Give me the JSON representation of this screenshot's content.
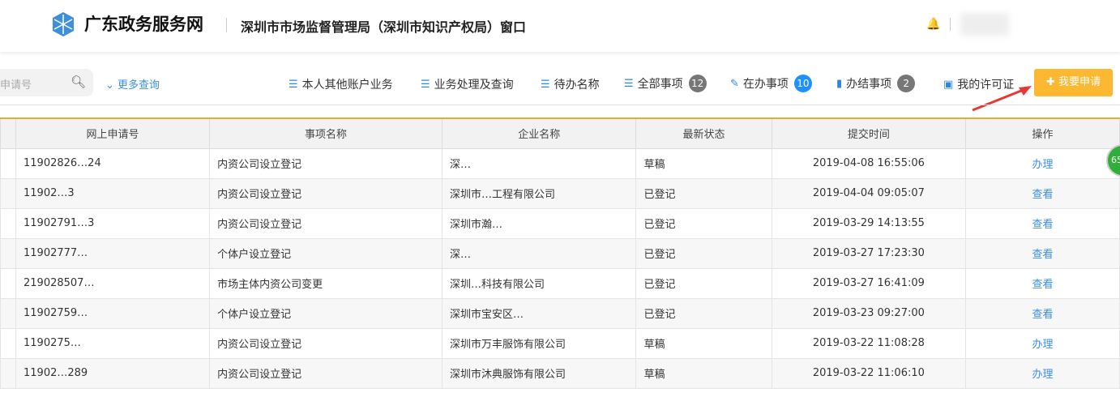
{
  "header": {
    "brand": "广东政务服务网",
    "department": "深圳市市场监督管理局（深圳市知识产权局）窗口"
  },
  "toolbar": {
    "search_placeholder": "申请号",
    "more_query": "更多查询",
    "nav": [
      {
        "label": "本人其他账户业务",
        "icon": "list-icon"
      },
      {
        "label": "业务处理及查询",
        "icon": "list-icon"
      },
      {
        "label": "待办名称",
        "icon": "list-icon"
      },
      {
        "label": "全部事项",
        "icon": "list-icon",
        "badge": "12"
      },
      {
        "label": "在办事项",
        "icon": "edit-icon",
        "badge": "10"
      },
      {
        "label": "办结事项",
        "icon": "briefcase-icon",
        "badge": "2"
      },
      {
        "label": "我的许可证",
        "icon": "id-card-icon"
      }
    ],
    "apply_label": "我要申请"
  },
  "table": {
    "columns": [
      "网上申请号",
      "事项名称",
      "企业名称",
      "最新状态",
      "提交时间",
      "操作"
    ],
    "rows": [
      [
        "11902826…24",
        "内资公司设立登记",
        "深…",
        "草稿",
        "2019-04-08 16:55:06",
        "办理"
      ],
      [
        "11902…3",
        "内资公司设立登记",
        "深圳市…工程有限公司",
        "已登记",
        "2019-04-04 09:05:07",
        "查看"
      ],
      [
        "11902791…3",
        "内资公司设立登记",
        "深圳市瀚…",
        "已登记",
        "2019-03-29 14:13:55",
        "查看"
      ],
      [
        "11902777…",
        "个体户设立登记",
        "深…",
        "已登记",
        "2019-03-27 17:23:30",
        "查看"
      ],
      [
        "219028507…",
        "市场主体内资公司变更",
        "深圳…科技有限公司",
        "已登记",
        "2019-03-27 16:41:09",
        "查看"
      ],
      [
        "11902759…",
        "个体户设立登记",
        "深圳市宝安区…",
        "已登记",
        "2019-03-23 09:27:00",
        "查看"
      ],
      [
        "1190275…",
        "内资公司设立登记",
        "深圳市万丰服饰有限公司",
        "草稿",
        "2019-03-22 11:08:28",
        "办理"
      ],
      [
        "11902…289",
        "内资公司设立登记",
        "深圳市沐典服饰有限公司",
        "草稿",
        "2019-03-22 11:06:10",
        "办理"
      ]
    ]
  },
  "floating_badge": "65"
}
